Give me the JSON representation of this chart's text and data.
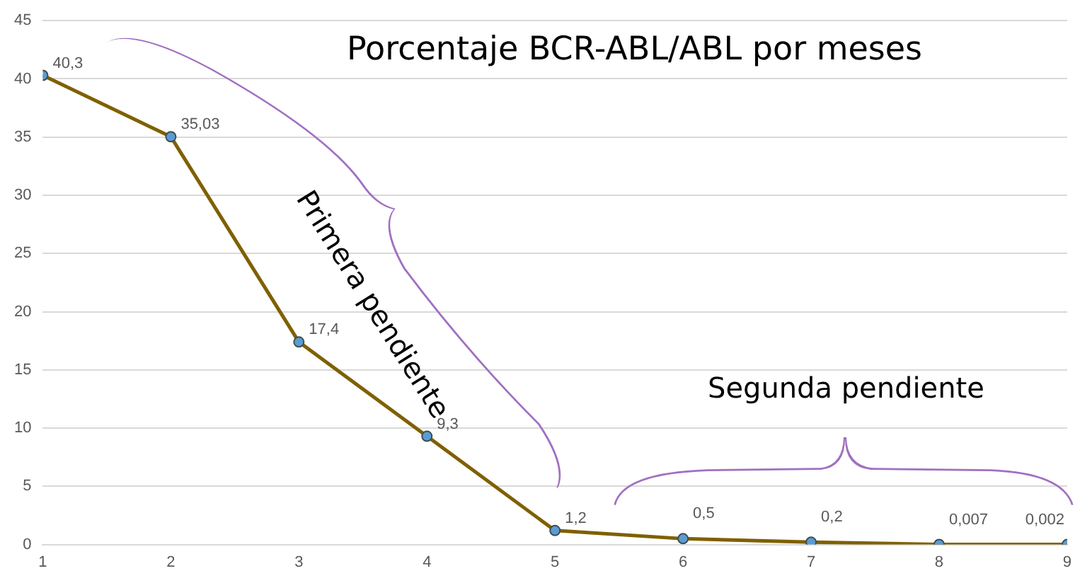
{
  "chart_data": {
    "type": "line",
    "title": "Porcentaje BCR-ABL/ABL por meses",
    "x": [
      1,
      2,
      3,
      4,
      5,
      6,
      7,
      8,
      9
    ],
    "values": [
      40.3,
      35.03,
      17.4,
      9.3,
      1.2,
      0.5,
      0.2,
      0.007,
      0.002
    ],
    "value_labels": [
      "40,3",
      "35,03",
      "17,4",
      "9,3",
      "1,2",
      "0,5",
      "0,2",
      "0,007",
      "0,002"
    ],
    "color": "#7f6000",
    "marker": "circle",
    "xlim": [
      1,
      9
    ],
    "xticks": [
      1,
      2,
      3,
      4,
      5,
      6,
      7,
      8,
      9
    ],
    "ylim": [
      0,
      45
    ],
    "yticks": [
      0,
      5,
      10,
      15,
      20,
      25,
      30,
      35,
      40,
      45
    ],
    "grid": "y",
    "annotations": [
      "Primera pendiente",
      "Segunda pendiente"
    ]
  }
}
